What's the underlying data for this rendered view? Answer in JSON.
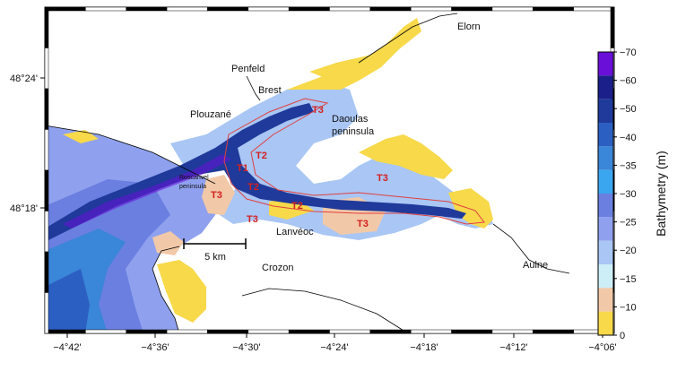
{
  "map": {
    "place_labels": [
      {
        "key": "elorn",
        "text": "Elorn"
      },
      {
        "key": "penfeld",
        "text": "Penfeld"
      },
      {
        "key": "brest",
        "text": "Brest"
      },
      {
        "key": "plouzane",
        "text": "Plouzané"
      },
      {
        "key": "daoulas1",
        "text": "Daoulas"
      },
      {
        "key": "daoulas2",
        "text": "peninsula"
      },
      {
        "key": "roscanvel1",
        "text": "Roscanvel"
      },
      {
        "key": "roscanvel2",
        "text": "peninsula"
      },
      {
        "key": "lanveoc",
        "text": "Lanvéoc"
      },
      {
        "key": "crozon",
        "text": "Crozon"
      },
      {
        "key": "aulne",
        "text": "Aulne"
      }
    ],
    "zone_labels": [
      "T3",
      "T2",
      "T1",
      "T2",
      "T3",
      "T3",
      "T2",
      "T3",
      "T3"
    ],
    "scale_bar_label": "5 km",
    "lon_ticks": [
      "−4°42'",
      "−4°36'",
      "−4°30'",
      "−4°24'",
      "−4°18'",
      "−4°12'",
      "−4°06'"
    ],
    "lat_ticks": [
      "48°24'",
      "48°18'"
    ]
  },
  "colorbar": {
    "title": "Bathymetry (m)",
    "levels": [
      "70",
      "60",
      "50",
      "40",
      "35",
      "30",
      "25",
      "20",
      "15",
      "10",
      "0"
    ],
    "tick_prefix": "−",
    "colors": [
      "#6a0fd8",
      "#1b1f8a",
      "#1f3a9a",
      "#2c5fc2",
      "#3a86d8",
      "#3aa6ef",
      "#6a7fe0",
      "#8fa1ee",
      "#a9c6f4",
      "#cdeef7",
      "#f2c9a8",
      "#f7d94a"
    ]
  },
  "colors": {
    "land": "#ffffff",
    "shallow": "#f7d94a",
    "flat": "#f2c9a8",
    "channel": "#2a3fa2",
    "deep": "#1b2d8a",
    "zone_outline": "#e04040"
  }
}
